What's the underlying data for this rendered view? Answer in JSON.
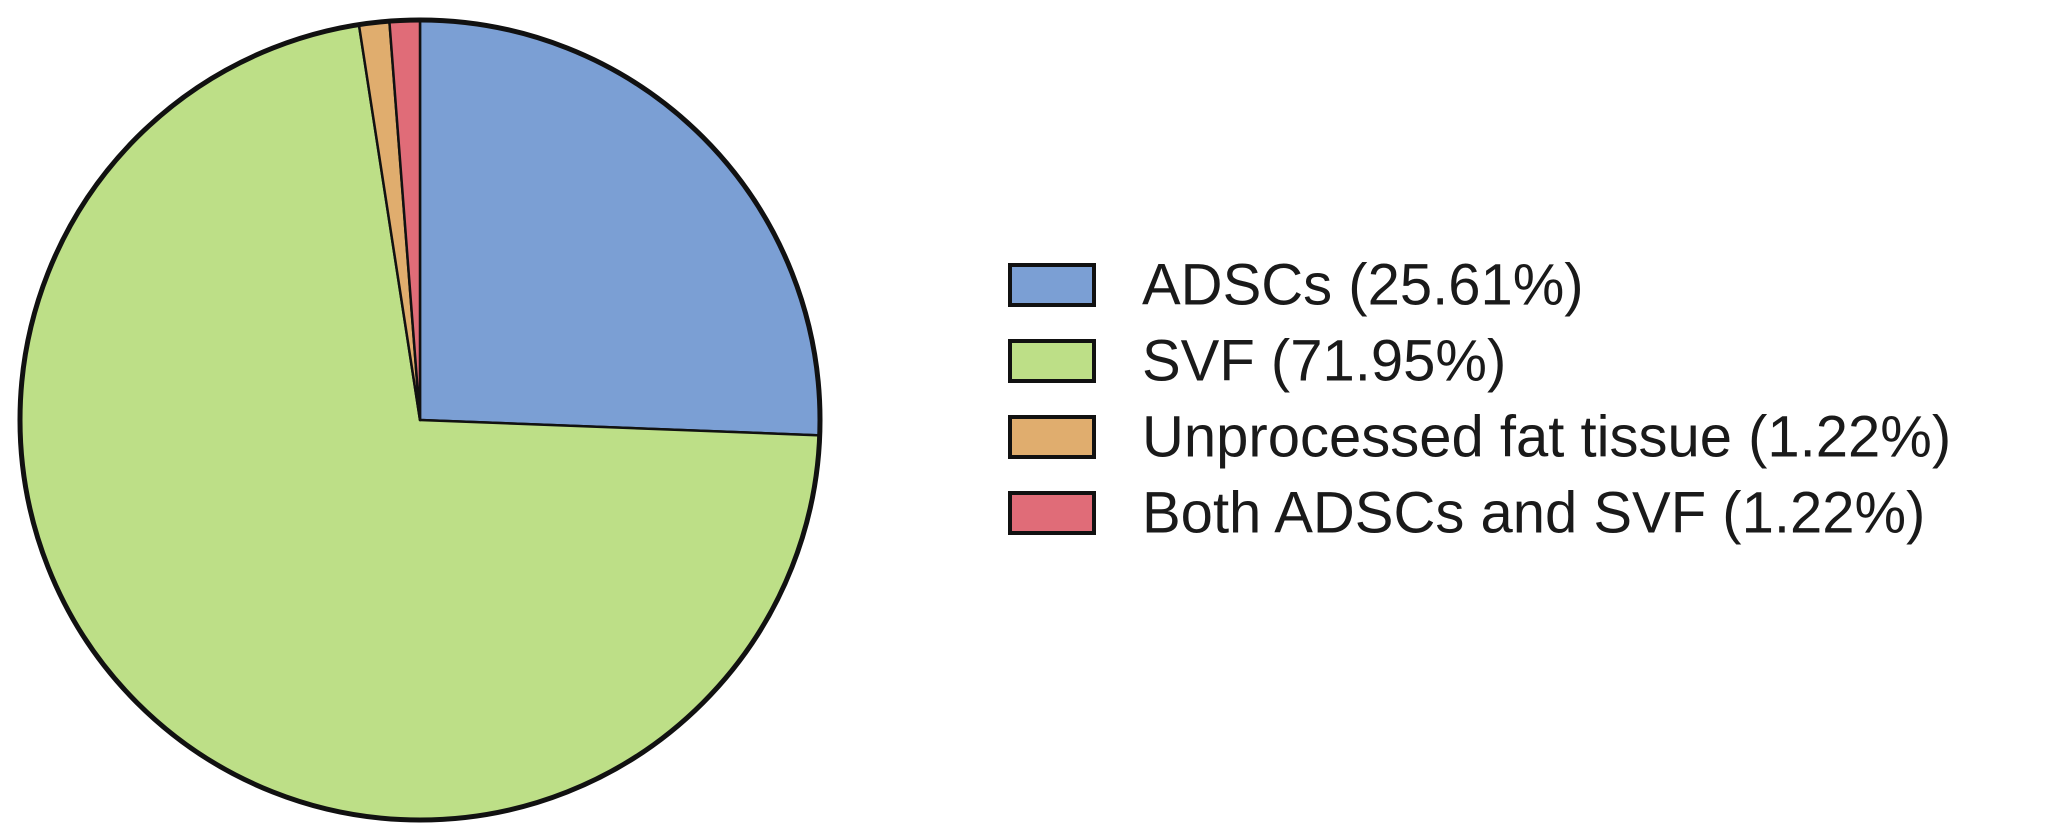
{
  "chart_data": {
    "type": "pie",
    "start": "12 o'clock",
    "direction": "clockwise",
    "legend_position": "right",
    "slices": [
      {
        "label": "ADSCs (25.61%)",
        "value": 25.61,
        "color": "#7b9fd4"
      },
      {
        "label": "SVF (71.95%)",
        "value": 71.95,
        "color": "#bddf87"
      },
      {
        "label": "Unprocessed fat tissue (1.22%)",
        "value": 1.22,
        "color": "#e0ad6e"
      },
      {
        "label": "Both ADSCs and SVF (1.22%)",
        "value": 1.22,
        "color": "#e06c78"
      }
    ]
  }
}
